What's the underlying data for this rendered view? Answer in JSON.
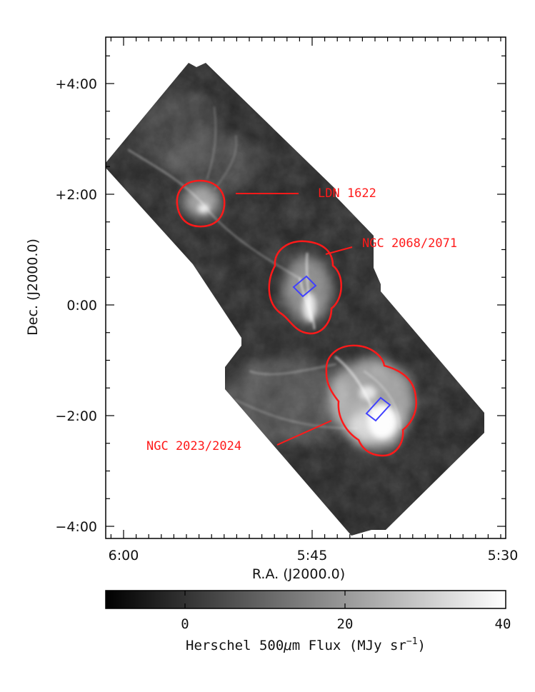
{
  "chart_data": {
    "type": "heatmap",
    "xlabel": "R.A. (J2000.0)",
    "ylabel": "Dec. (J2000.0)",
    "x_ticks": [
      "6:00",
      "5:45",
      "5:30"
    ],
    "y_ticks": [
      "+4:00",
      "+2:00",
      "0:00",
      "−2:00",
      "−4:00"
    ],
    "colorbar": {
      "label_prefix": "Herschel 500",
      "label_mu": "μ",
      "label_mid": "m Flux (MJy sr",
      "label_exp": "−1",
      "label_suffix": ")",
      "tick_labels": [
        "0",
        "20",
        "40"
      ],
      "range": [
        -10,
        40
      ],
      "colormap": "grayscale"
    },
    "annotations": [
      {
        "label": "LDN 1622",
        "color": "#ff1a1a"
      },
      {
        "label": "NGC 2068/2071",
        "color": "#ff1a1a"
      },
      {
        "label": "NGC 2023/2024",
        "color": "#ff1a1a"
      }
    ],
    "overlay_colors": {
      "regions": "#ff1a1a",
      "boxes": "#3333ff"
    }
  }
}
